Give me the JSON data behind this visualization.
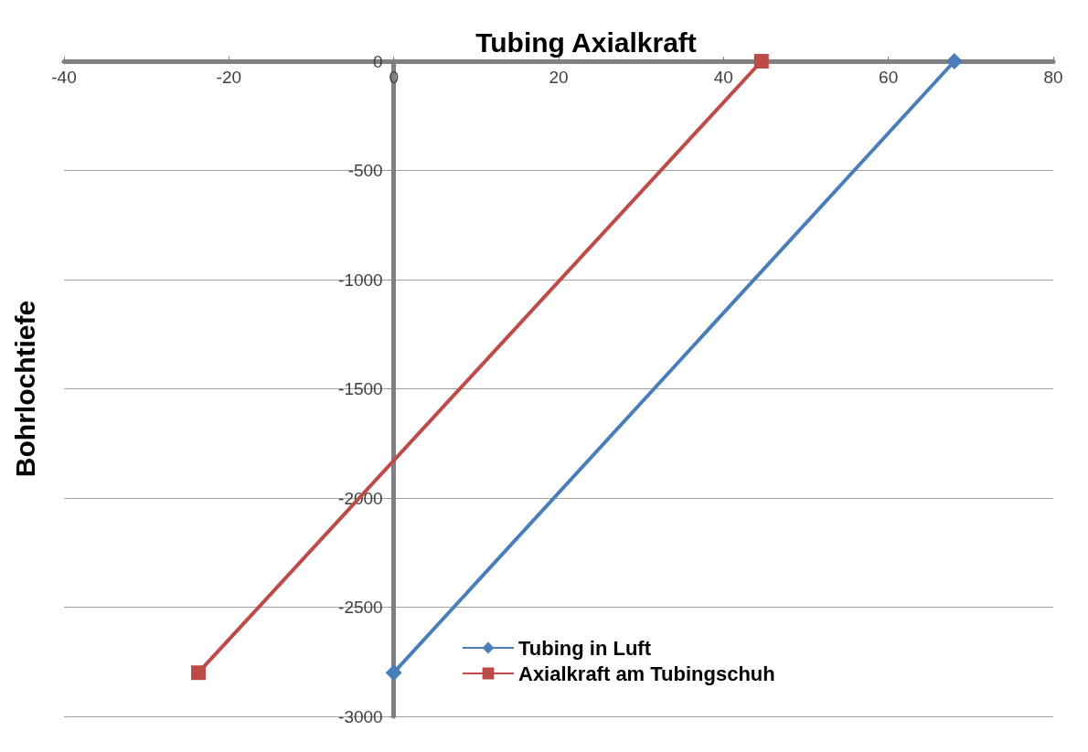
{
  "chart_data": {
    "type": "line",
    "title": "Tubing Axialkraft",
    "ylabel": "Bohrlochtiefe",
    "series": [
      {
        "name": "Tubing in Luft",
        "color": "#4a7ebb",
        "x": [
          68,
          0
        ],
        "values": [
          0,
          -2800
        ],
        "marker": "diamond"
      },
      {
        "name": "Axialkraft am Tubingschuh",
        "color": "#be4b48",
        "x": [
          44.6,
          -23.7
        ],
        "values": [
          0,
          -2800
        ],
        "marker": "square"
      }
    ],
    "xlim": [
      -40,
      80
    ],
    "xticks": [
      -40,
      -20,
      0,
      20,
      40,
      60,
      80
    ],
    "ylim": [
      -3000,
      0
    ],
    "yticks": [
      -3000,
      -2500,
      -2000,
      -1500,
      -1000,
      -500,
      0
    ],
    "grid": "y",
    "legend": "bottom",
    "line_style": "solid"
  }
}
